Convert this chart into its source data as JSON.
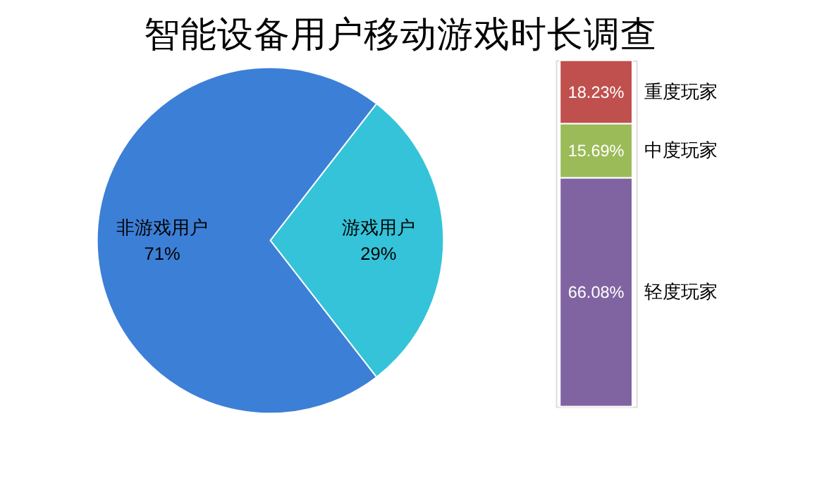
{
  "chart_data": [
    {
      "type": "pie",
      "title": "智能设备用户移动游戏时长调查",
      "categories": [
        "非游戏用户",
        "游戏用户"
      ],
      "values": [
        71,
        29
      ],
      "colors": [
        "#3c7fd6",
        "#35c3d9"
      ],
      "value_labels": [
        "71%",
        "29%"
      ]
    },
    {
      "type": "bar",
      "stacked": true,
      "categories": [
        null
      ],
      "series": [
        {
          "name": "轻度玩家",
          "color": "#8064a2",
          "values": [
            66.08
          ],
          "value_labels": [
            "66.08%"
          ]
        },
        {
          "name": "中度玩家",
          "color": "#9bbb59",
          "values": [
            15.69
          ],
          "value_labels": [
            "15.69%"
          ]
        },
        {
          "name": "重度玩家",
          "color": "#c0504d",
          "values": [
            18.23
          ],
          "value_labels": [
            "18.23%"
          ]
        }
      ]
    }
  ]
}
